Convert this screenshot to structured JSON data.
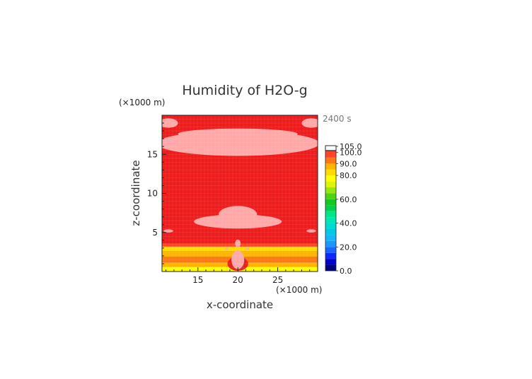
{
  "chart_data": {
    "type": "heatmap",
    "title": "Humidity of H2O-g",
    "xlabel": "x-coordinate",
    "ylabel": "z-coordinate",
    "x_unit": "(×1000 m)",
    "y_unit": "(×1000 m)",
    "time_label": "2400 s",
    "xlim": [
      10.5,
      30
    ],
    "ylim": [
      0,
      20
    ],
    "x_ticks": [
      15,
      20,
      25
    ],
    "y_ticks": [
      5,
      10,
      15
    ],
    "colorbar": {
      "labels": [
        "0.0",
        "20.0",
        "40.0",
        "60.0",
        "80.0",
        "90.0",
        "100.0",
        "105.0"
      ],
      "bins": [
        {
          "lo": 0,
          "hi": 5,
          "color": "#00007f"
        },
        {
          "lo": 5,
          "hi": 10,
          "color": "#0000c8"
        },
        {
          "lo": 10,
          "hi": 15,
          "color": "#0a28ff"
        },
        {
          "lo": 15,
          "hi": 20,
          "color": "#1a64ff"
        },
        {
          "lo": 20,
          "hi": 25,
          "color": "#1e96ff"
        },
        {
          "lo": 25,
          "hi": 30,
          "color": "#14b4ff"
        },
        {
          "lo": 30,
          "hi": 35,
          "color": "#00c8e6"
        },
        {
          "lo": 35,
          "hi": 40,
          "color": "#00dcd2"
        },
        {
          "lo": 40,
          "hi": 45,
          "color": "#00e6b4"
        },
        {
          "lo": 45,
          "hi": 50,
          "color": "#00e68c"
        },
        {
          "lo": 50,
          "hi": 55,
          "color": "#00d250"
        },
        {
          "lo": 55,
          "hi": 60,
          "color": "#14c81e"
        },
        {
          "lo": 60,
          "hi": 65,
          "color": "#50d214"
        },
        {
          "lo": 65,
          "hi": 70,
          "color": "#96e614"
        },
        {
          "lo": 70,
          "hi": 75,
          "color": "#dcf50a"
        },
        {
          "lo": 75,
          "hi": 80,
          "color": "#ffff00"
        },
        {
          "lo": 80,
          "hi": 85,
          "color": "#ffdc00"
        },
        {
          "lo": 85,
          "hi": 90,
          "color": "#ffb400"
        },
        {
          "lo": 90,
          "hi": 95,
          "color": "#ff7814"
        },
        {
          "lo": 95,
          "hi": 100,
          "color": "#ff4628"
        },
        {
          "lo": 100,
          "hi": 101,
          "color": "#ee1c1c"
        },
        {
          "lo": 101,
          "hi": 105,
          "color": "#ffa8a8"
        }
      ]
    },
    "regions": [
      {
        "shape": "band",
        "y0": 0,
        "y1": 0.6,
        "value": 77
      },
      {
        "shape": "band",
        "y0": 0.6,
        "y1": 1.2,
        "value": 86
      },
      {
        "shape": "band",
        "y0": 1.2,
        "y1": 1.9,
        "value": 92
      },
      {
        "shape": "band",
        "y0": 1.9,
        "y1": 2.6,
        "value": 88
      },
      {
        "shape": "band",
        "y0": 2.6,
        "y1": 3.2,
        "value": 84
      },
      {
        "shape": "band",
        "y0": 3.2,
        "y1": 3.6,
        "value": 96
      },
      {
        "shape": "ellipse",
        "cx": 15.2,
        "cy": 0.3,
        "rx": 0.9,
        "ry": 0.3,
        "value": 75
      },
      {
        "shape": "ellipse",
        "cx": 24.8,
        "cy": 0.3,
        "rx": 0.9,
        "ry": 0.3,
        "value": 75
      },
      {
        "shape": "ellipse",
        "cx": 20,
        "cy": 1.0,
        "rx": 1.3,
        "ry": 0.9,
        "value": 100.5
      },
      {
        "shape": "ellipse",
        "cx": 20,
        "cy": 1.5,
        "rx": 0.8,
        "ry": 1.2,
        "value": 104
      },
      {
        "shape": "ellipse",
        "cx": 20,
        "cy": 3.6,
        "rx": 0.35,
        "ry": 0.5,
        "value": 104
      },
      {
        "shape": "ellipse",
        "cx": 18.6,
        "cy": 2.9,
        "rx": 0.2,
        "ry": 0.15,
        "value": 104
      },
      {
        "shape": "ellipse",
        "cx": 21.2,
        "cy": 2.9,
        "rx": 0.2,
        "ry": 0.15,
        "value": 104
      },
      {
        "shape": "ellipse",
        "cx": 20,
        "cy": 6.4,
        "rx": 5.5,
        "ry": 0.9,
        "value": 104
      },
      {
        "shape": "ellipse",
        "cx": 20,
        "cy": 7.3,
        "rx": 2.4,
        "ry": 1.1,
        "value": 104
      },
      {
        "shape": "ellipse",
        "cx": 11.3,
        "cy": 5.2,
        "rx": 0.6,
        "ry": 0.2,
        "value": 104
      },
      {
        "shape": "ellipse",
        "cx": 29.2,
        "cy": 5.2,
        "rx": 0.6,
        "ry": 0.2,
        "value": 104
      },
      {
        "shape": "ellipse",
        "cx": 20,
        "cy": 16.4,
        "rx": 10.2,
        "ry": 1.6,
        "value": 104
      },
      {
        "shape": "ellipse",
        "cx": 20,
        "cy": 17.6,
        "rx": 7.5,
        "ry": 0.7,
        "value": 104
      },
      {
        "shape": "ellipse",
        "cx": 11.3,
        "cy": 19.0,
        "rx": 1.2,
        "ry": 0.6,
        "value": 104
      },
      {
        "shape": "ellipse",
        "cx": 29.2,
        "cy": 19.0,
        "rx": 1.2,
        "ry": 0.6,
        "value": 104
      }
    ],
    "background_value": 100.5
  }
}
